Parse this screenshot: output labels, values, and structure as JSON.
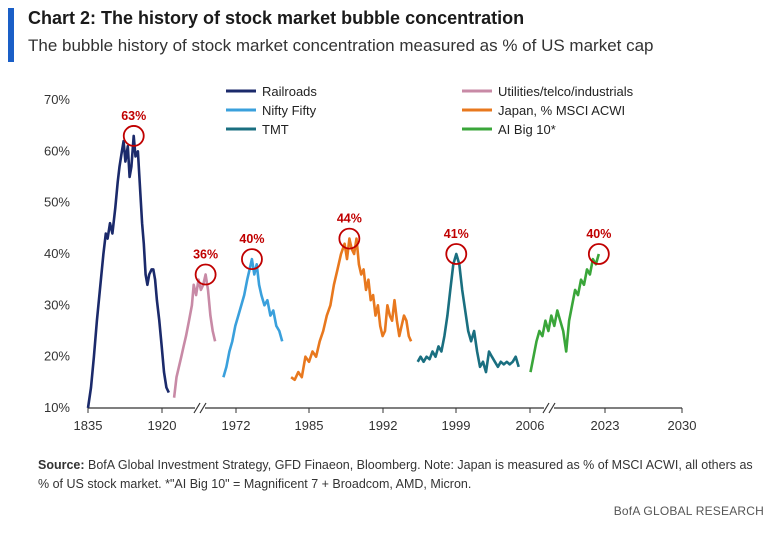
{
  "header": {
    "title": "Chart 2: The history of stock market bubble concentration",
    "subtitle": "The bubble history of stock market concentration measured as % of US market cap"
  },
  "footer": {
    "source_label": "Source:",
    "source_text": " BofA Global Investment Strategy, GFD Finaeon, Bloomberg. Note: Japan is measured as % of MSCI ACWI, all others as % of US stock market. *\"AI Big 10\" = Magnificent 7 + Broadcom, AMD, Micron.",
    "brand": "BofA GLOBAL RESEARCH"
  },
  "colors": {
    "accent": "#1a5fc7",
    "peak_marker": "#c00000"
  },
  "chart_data": {
    "type": "line",
    "ylim": [
      10,
      70
    ],
    "y_ticks": [
      "10%",
      "20%",
      "30%",
      "40%",
      "50%",
      "60%",
      "70%"
    ],
    "x_ticks": [
      "1835",
      "1920",
      "1972",
      "1985",
      "1992",
      "1999",
      "2006",
      "2023",
      "2030"
    ],
    "x_axis_breaks": "two breaks shown by double slashes",
    "grid": false,
    "legend_position": "top",
    "series": [
      {
        "name": "Railroads",
        "color": "#1b2a6b",
        "peak_label": "63%",
        "points": [
          [
            0,
            10
          ],
          [
            0.5,
            14
          ],
          [
            1,
            20
          ],
          [
            1.5,
            27
          ],
          [
            2,
            33
          ],
          [
            2.6,
            40
          ],
          [
            3,
            44
          ],
          [
            3.3,
            43
          ],
          [
            3.7,
            46
          ],
          [
            4.1,
            44
          ],
          [
            4.6,
            49
          ],
          [
            5,
            54
          ],
          [
            5.3,
            57
          ],
          [
            5.7,
            60
          ],
          [
            6,
            62
          ],
          [
            6.3,
            58
          ],
          [
            6.7,
            61
          ],
          [
            7,
            55
          ],
          [
            7.3,
            57
          ],
          [
            7.7,
            63
          ],
          [
            8,
            59
          ],
          [
            8.4,
            60
          ],
          [
            8.8,
            52
          ],
          [
            9.1,
            46
          ],
          [
            9.4,
            42
          ],
          [
            9.7,
            36
          ],
          [
            10,
            34
          ],
          [
            10.3,
            36
          ],
          [
            10.7,
            37
          ],
          [
            11,
            37
          ],
          [
            11.3,
            35
          ],
          [
            11.6,
            31
          ],
          [
            12,
            27
          ],
          [
            12.4,
            22
          ],
          [
            12.8,
            17
          ],
          [
            13.2,
            14
          ],
          [
            13.6,
            13
          ]
        ]
      },
      {
        "name": "Utilities/telco/industrials",
        "color": "#c88aa6",
        "peak_label": "36%",
        "points": [
          [
            14.5,
            12
          ],
          [
            14.9,
            16
          ],
          [
            15.3,
            18
          ],
          [
            15.7,
            20
          ],
          [
            16.1,
            22
          ],
          [
            16.5,
            24
          ],
          [
            17,
            27
          ],
          [
            17.5,
            30
          ],
          [
            17.8,
            34
          ],
          [
            18.2,
            32
          ],
          [
            18.6,
            35
          ],
          [
            19,
            33
          ],
          [
            19.4,
            34
          ],
          [
            19.8,
            36
          ],
          [
            20.2,
            33
          ],
          [
            20.6,
            28
          ],
          [
            21,
            25
          ],
          [
            21.4,
            23
          ]
        ]
      },
      {
        "name": "Nifty Fifty",
        "color": "#3aa0dc",
        "peak_label": "40%",
        "points": [
          [
            22.8,
            16
          ],
          [
            23.3,
            18
          ],
          [
            23.8,
            21
          ],
          [
            24.3,
            23
          ],
          [
            24.8,
            26
          ],
          [
            25.3,
            28
          ],
          [
            25.8,
            30
          ],
          [
            26.3,
            32
          ],
          [
            26.8,
            35
          ],
          [
            27.2,
            37
          ],
          [
            27.6,
            39
          ],
          [
            28,
            36
          ],
          [
            28.4,
            38
          ],
          [
            28.8,
            34
          ],
          [
            29.2,
            32
          ],
          [
            29.7,
            30
          ],
          [
            30.2,
            31
          ],
          [
            30.7,
            28
          ],
          [
            31.2,
            29
          ],
          [
            31.7,
            26
          ],
          [
            32.2,
            25
          ],
          [
            32.7,
            23
          ]
        ]
      },
      {
        "name": "Japan, % MSCI ACWI",
        "color": "#e8781e",
        "peak_label": "44%",
        "points": [
          [
            34.2,
            16
          ],
          [
            34.8,
            15.5
          ],
          [
            35.4,
            17
          ],
          [
            36,
            16
          ],
          [
            36.6,
            20
          ],
          [
            37.2,
            19
          ],
          [
            37.8,
            21
          ],
          [
            38.4,
            20
          ],
          [
            39,
            23
          ],
          [
            39.6,
            25
          ],
          [
            40.2,
            28
          ],
          [
            40.8,
            30
          ],
          [
            41.4,
            34
          ],
          [
            42,
            37
          ],
          [
            42.6,
            40
          ],
          [
            43.2,
            42
          ],
          [
            43.6,
            39
          ],
          [
            44,
            43
          ],
          [
            44.4,
            41
          ],
          [
            44.8,
            40
          ],
          [
            45.2,
            43
          ],
          [
            45.6,
            38
          ],
          [
            46,
            36
          ],
          [
            46.4,
            37
          ],
          [
            46.8,
            33
          ],
          [
            47.2,
            35
          ],
          [
            47.6,
            31
          ],
          [
            48,
            32
          ],
          [
            48.4,
            28
          ],
          [
            48.8,
            30
          ],
          [
            49.2,
            26
          ],
          [
            49.6,
            24
          ],
          [
            50,
            25
          ],
          [
            50.4,
            30
          ],
          [
            50.8,
            28
          ],
          [
            51.2,
            27
          ],
          [
            51.6,
            31
          ],
          [
            52,
            27
          ],
          [
            52.4,
            24
          ],
          [
            52.8,
            26
          ],
          [
            53.2,
            28
          ],
          [
            53.6,
            27
          ],
          [
            54,
            24
          ],
          [
            54.4,
            23
          ]
        ]
      },
      {
        "name": "TMT",
        "color": "#1a6f80",
        "peak_label": "41%",
        "points": [
          [
            55.5,
            19
          ],
          [
            56,
            20
          ],
          [
            56.5,
            19
          ],
          [
            57,
            20
          ],
          [
            57.5,
            19.5
          ],
          [
            58,
            21
          ],
          [
            58.5,
            20
          ],
          [
            59,
            22
          ],
          [
            59.5,
            21
          ],
          [
            60,
            24
          ],
          [
            60.5,
            28
          ],
          [
            61,
            33
          ],
          [
            61.5,
            38
          ],
          [
            62,
            40
          ],
          [
            62.5,
            38
          ],
          [
            63,
            33
          ],
          [
            63.5,
            29
          ],
          [
            64,
            25
          ],
          [
            64.5,
            23
          ],
          [
            65,
            25
          ],
          [
            65.5,
            21
          ],
          [
            66,
            18
          ],
          [
            66.5,
            19
          ],
          [
            67,
            17
          ],
          [
            67.5,
            21
          ],
          [
            68,
            20
          ],
          [
            68.5,
            19
          ],
          [
            69,
            18
          ],
          [
            69.5,
            19
          ],
          [
            70,
            18.5
          ],
          [
            70.5,
            19
          ],
          [
            71,
            18.5
          ],
          [
            71.5,
            19
          ],
          [
            72,
            20
          ],
          [
            72.5,
            18
          ]
        ]
      },
      {
        "name": "AI Big 10*",
        "color": "#3aa63a",
        "peak_label": "40%",
        "points": [
          [
            74.5,
            17
          ],
          [
            75,
            20
          ],
          [
            75.5,
            23
          ],
          [
            76,
            25
          ],
          [
            76.5,
            24
          ],
          [
            77,
            27
          ],
          [
            77.5,
            25
          ],
          [
            78,
            28
          ],
          [
            78.5,
            26
          ],
          [
            79,
            29
          ],
          [
            79.5,
            27
          ],
          [
            80,
            25
          ],
          [
            80.5,
            21
          ],
          [
            81,
            27
          ],
          [
            81.5,
            30
          ],
          [
            82,
            33
          ],
          [
            82.5,
            32
          ],
          [
            83,
            35
          ],
          [
            83.5,
            34
          ],
          [
            84,
            37
          ],
          [
            84.5,
            36
          ],
          [
            85,
            39
          ],
          [
            85.5,
            38
          ],
          [
            86,
            40
          ]
        ]
      }
    ]
  }
}
